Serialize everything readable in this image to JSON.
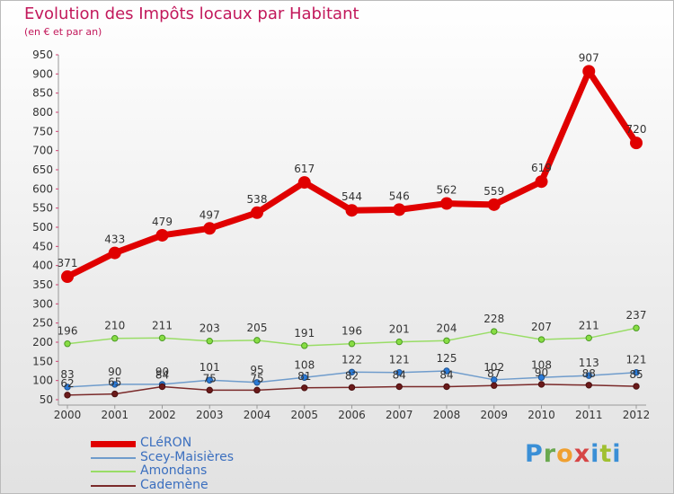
{
  "title": "Evolution des Impôts locaux par Habitant",
  "subtitle": "(en € et par an)",
  "logo": "Proxiti",
  "chart_data": {
    "type": "line",
    "title": "Evolution des Impôts locaux par Habitant",
    "subtitle": "(en € et par an)",
    "xlabel": "",
    "ylabel": "",
    "ylim": [
      50,
      950
    ],
    "ytick_step": 50,
    "grid": false,
    "x": [
      "2000",
      "2001",
      "2002",
      "2003",
      "2004",
      "2005",
      "2006",
      "2007",
      "2008",
      "2009",
      "2010",
      "2011",
      "2012"
    ],
    "series": [
      {
        "name": "CLéRON",
        "color": "#e00000",
        "values": [
          371,
          433,
          479,
          497,
          538,
          617,
          544,
          546,
          562,
          559,
          619,
          907,
          720
        ],
        "labels": [
          "371",
          "433",
          "479",
          "497",
          "538",
          "617",
          "544",
          "546",
          "562",
          "559",
          "619",
          "907",
          "720"
        ]
      },
      {
        "name": "Scey-Maisières",
        "color": "#6f9ccc",
        "values": [
          83,
          90,
          90,
          101,
          95,
          108,
          122,
          121,
          125,
          102,
          108,
          113,
          121
        ],
        "labels": [
          "83",
          "90",
          "90",
          "101",
          "95",
          "108",
          "122",
          "121",
          "125",
          "102",
          "108",
          "113",
          "121"
        ]
      },
      {
        "name": "Amondans",
        "color": "#99dd66",
        "values": [
          196,
          210,
          211,
          203,
          205,
          191,
          196,
          201,
          204,
          228,
          207,
          211,
          237
        ],
        "labels": [
          "196",
          "210",
          "211",
          "203",
          "205",
          "191",
          "196",
          "201",
          "204",
          "228",
          "207",
          "211",
          "237"
        ]
      },
      {
        "name": "Cademène",
        "color": "#7a2a2a",
        "values": [
          62,
          65,
          84,
          75,
          75,
          81,
          82,
          84,
          84,
          87,
          90,
          88,
          85
        ],
        "labels": [
          "62",
          "65",
          "84",
          "75",
          "75",
          "81",
          "82",
          "84",
          "84",
          "87",
          "90",
          "88",
          "85"
        ]
      }
    ],
    "legend_position": "bottom-left"
  }
}
